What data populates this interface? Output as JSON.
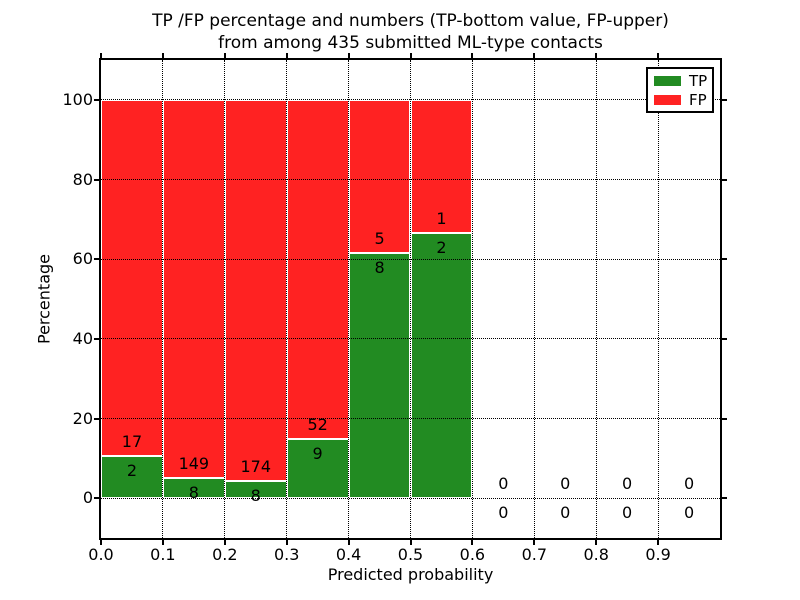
{
  "title": {
    "line1": "TP /FP percentage and numbers (TP-bottom value, FP-upper)",
    "line2": "from among 435 submitted ML-type contacts"
  },
  "chart_data": {
    "type": "bar",
    "stacked": true,
    "title": "TP /FP percentage and numbers (TP-bottom value, FP-upper) from among 435 submitted ML-type contacts",
    "xlabel": "Predicted probability",
    "ylabel": "Percentage",
    "xlim": [
      0.0,
      1.0
    ],
    "ylim": [
      -10,
      110
    ],
    "xtick_values": [
      0.0,
      0.1,
      0.2,
      0.3,
      0.4,
      0.5,
      0.6,
      0.7,
      0.8,
      0.9
    ],
    "xtick_labels": [
      "0.0",
      "0.1",
      "0.2",
      "0.3",
      "0.4",
      "0.5",
      "0.6",
      "0.7",
      "0.8",
      "0.9"
    ],
    "ytick_values": [
      0,
      20,
      40,
      60,
      80,
      100
    ],
    "ytick_labels": [
      "0",
      "20",
      "40",
      "60",
      "80",
      "100"
    ],
    "grid": true,
    "grid_style": "dotted",
    "total_contacts": 435,
    "legend": {
      "position": "upper right",
      "entries": [
        {
          "label": "TP",
          "color": "#228b22"
        },
        {
          "label": "FP",
          "color": "#ff2222"
        }
      ]
    },
    "series_note": "Each bin stacked to 100%: TP percentage on bottom (green), FP percentage on top (red); labels show raw counts (TP below boundary, FP above)",
    "bins": [
      {
        "x_start": 0.0,
        "x_end": 0.1,
        "tp": 2,
        "fp": 17,
        "tp_pct": 10.5,
        "fp_pct": 89.5
      },
      {
        "x_start": 0.1,
        "x_end": 0.2,
        "tp": 8,
        "fp": 149,
        "tp_pct": 5.1,
        "fp_pct": 94.9
      },
      {
        "x_start": 0.2,
        "x_end": 0.3,
        "tp": 8,
        "fp": 174,
        "tp_pct": 4.4,
        "fp_pct": 95.6
      },
      {
        "x_start": 0.3,
        "x_end": 0.4,
        "tp": 9,
        "fp": 52,
        "tp_pct": 14.8,
        "fp_pct": 85.2
      },
      {
        "x_start": 0.4,
        "x_end": 0.5,
        "tp": 8,
        "fp": 5,
        "tp_pct": 61.5,
        "fp_pct": 38.5
      },
      {
        "x_start": 0.5,
        "x_end": 0.6,
        "tp": 2,
        "fp": 1,
        "tp_pct": 66.7,
        "fp_pct": 33.3
      },
      {
        "x_start": 0.6,
        "x_end": 0.7,
        "tp": 0,
        "fp": 0,
        "tp_pct": 0,
        "fp_pct": 0
      },
      {
        "x_start": 0.7,
        "x_end": 0.8,
        "tp": 0,
        "fp": 0,
        "tp_pct": 0,
        "fp_pct": 0
      },
      {
        "x_start": 0.8,
        "x_end": 0.9,
        "tp": 0,
        "fp": 0,
        "tp_pct": 0,
        "fp_pct": 0
      },
      {
        "x_start": 0.9,
        "x_end": 1.0,
        "tp": 0,
        "fp": 0,
        "tp_pct": 0,
        "fp_pct": 0
      }
    ]
  },
  "colors": {
    "tp_green": "#228b22",
    "fp_red": "#ff2222",
    "background": "#ffffff",
    "axis": "#000000",
    "text": "#000000"
  }
}
